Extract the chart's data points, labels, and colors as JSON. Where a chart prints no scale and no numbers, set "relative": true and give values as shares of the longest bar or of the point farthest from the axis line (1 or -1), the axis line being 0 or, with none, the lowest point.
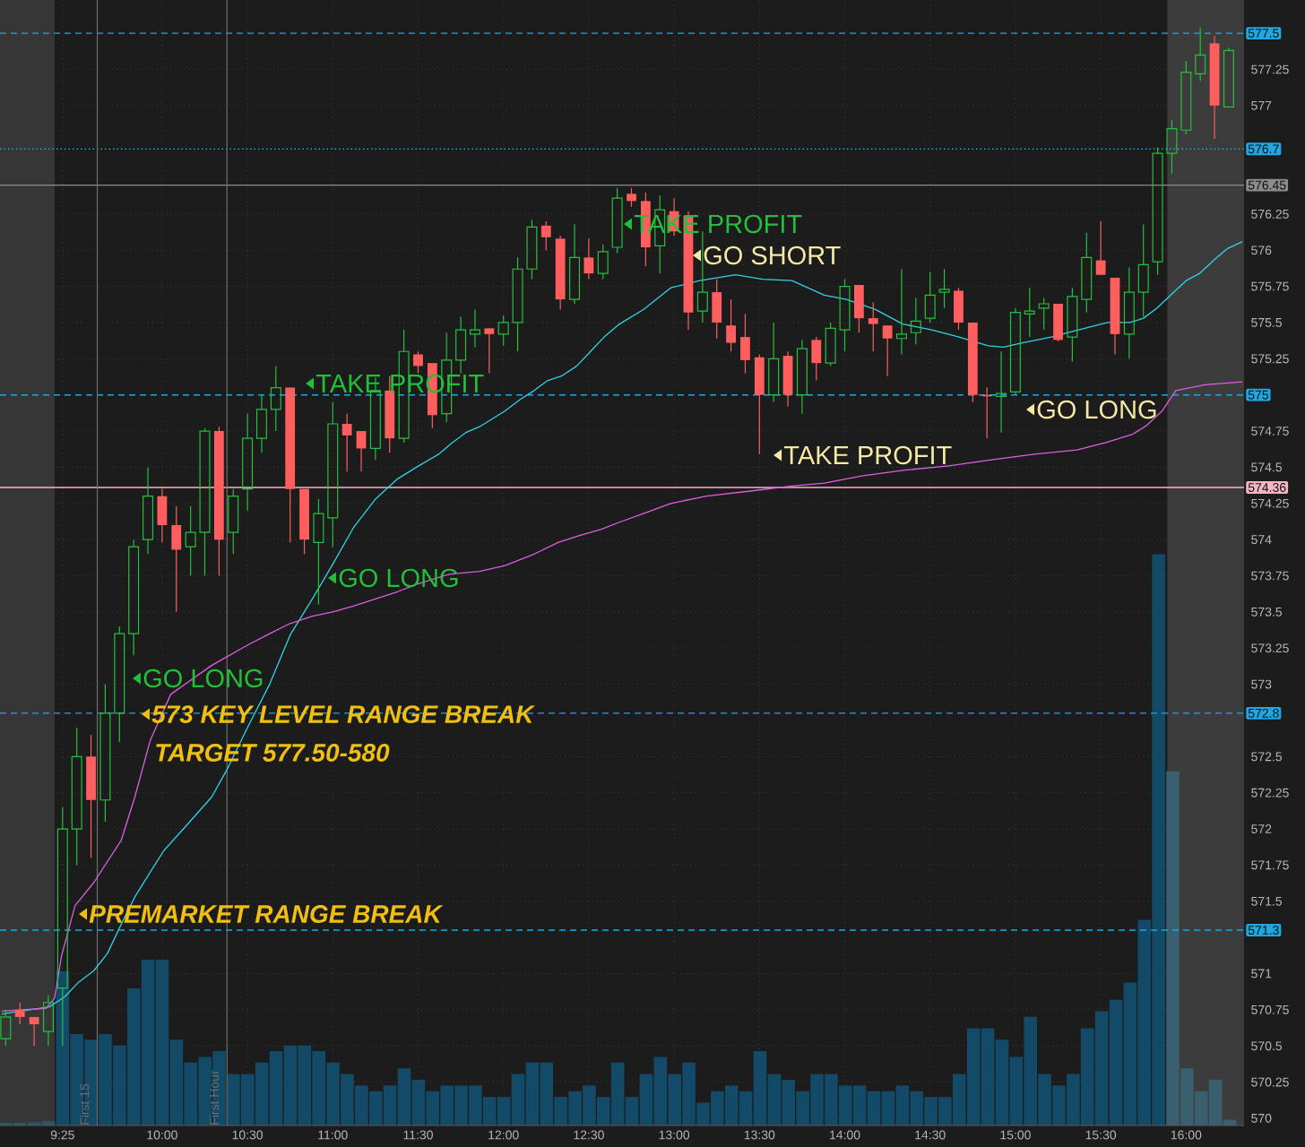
{
  "chart_data": [
    {
      "type": "candlestick",
      "x": [
        9.0833,
        9.1667,
        9.25,
        9.3333,
        9.4167,
        9.5,
        9.5833,
        9.6667,
        9.75,
        9.8333,
        9.9167,
        10,
        10.0833,
        10.1667,
        10.25,
        10.3333,
        10.4167,
        10.5,
        10.5833,
        10.6667,
        10.75,
        10.8333,
        10.9167,
        11,
        11.0833,
        11.1667,
        11.25,
        11.3333,
        11.4167,
        11.5,
        11.5833,
        11.6667,
        11.75,
        11.8333,
        11.9167,
        12,
        12.0833,
        12.1667,
        12.25,
        12.3333,
        12.4167,
        12.5,
        12.5833,
        12.6667,
        12.75,
        12.8333,
        12.9167,
        13,
        13.0833,
        13.1667,
        13.25,
        13.3333,
        13.4167,
        13.5,
        13.5833,
        13.6667,
        13.75,
        13.8333,
        13.9167,
        14,
        14.0833,
        14.1667,
        14.25,
        14.3333,
        14.4167,
        14.5,
        14.5833,
        14.6667,
        14.75,
        14.8333,
        14.9167,
        15,
        15.0833,
        15.1667,
        15.25,
        15.3333,
        15.4167,
        15.5,
        15.5833,
        15.6667,
        15.75,
        15.8333,
        15.9167,
        16,
        16.0833,
        16.1667,
        16.25
      ],
      "ohlc": [
        [
          570.55,
          570.75,
          570.5,
          570.7
        ],
        [
          570.75,
          570.8,
          570.65,
          570.7
        ],
        [
          570.7,
          570.7,
          570.5,
          570.65
        ],
        [
          570.6,
          570.85,
          570.5,
          570.8
        ],
        [
          570.9,
          572.15,
          570.5,
          572.0
        ],
        [
          572.0,
          572.7,
          571.75,
          572.5
        ],
        [
          572.5,
          572.65,
          571.8,
          572.2
        ],
        [
          572.2,
          573.0,
          572.05,
          572.8
        ],
        [
          572.8,
          573.4,
          572.6,
          573.35
        ],
        [
          573.35,
          574.0,
          573.2,
          573.95
        ],
        [
          574.0,
          574.5,
          573.9,
          574.3
        ],
        [
          574.3,
          574.35,
          573.98,
          574.1
        ],
        [
          574.1,
          574.23,
          573.5,
          573.93
        ],
        [
          573.95,
          574.23,
          573.75,
          574.05
        ],
        [
          574.05,
          574.77,
          573.75,
          574.75
        ],
        [
          574.75,
          574.78,
          573.75,
          574.0
        ],
        [
          574.05,
          574.35,
          573.9,
          574.3
        ],
        [
          574.35,
          574.87,
          574.2,
          574.7
        ],
        [
          574.7,
          575.0,
          574.6,
          574.9
        ],
        [
          574.9,
          575.2,
          574.75,
          575.05
        ],
        [
          575.05,
          575.05,
          573.98,
          574.35
        ],
        [
          574.35,
          574.35,
          573.9,
          574.0
        ],
        [
          573.98,
          574.28,
          573.55,
          574.18
        ],
        [
          574.15,
          574.95,
          573.95,
          574.8
        ],
        [
          574.8,
          574.87,
          574.47,
          574.72
        ],
        [
          574.75,
          574.75,
          574.47,
          574.63
        ],
        [
          574.63,
          575.12,
          574.55,
          575.03
        ],
        [
          575.03,
          575.13,
          574.6,
          574.7
        ],
        [
          574.7,
          575.45,
          574.67,
          575.3
        ],
        [
          575.28,
          575.3,
          575.15,
          575.2
        ],
        [
          575.22,
          575.22,
          574.77,
          574.86
        ],
        [
          574.87,
          575.43,
          574.81,
          575.24
        ],
        [
          575.24,
          575.54,
          575.15,
          575.45
        ],
        [
          575.42,
          575.59,
          575.33,
          575.45
        ],
        [
          575.46,
          575.46,
          575.15,
          575.42
        ],
        [
          575.42,
          575.55,
          575.34,
          575.5
        ],
        [
          575.5,
          575.95,
          575.3,
          575.87
        ],
        [
          575.87,
          576.21,
          575.8,
          576.16
        ],
        [
          576.17,
          576.2,
          576.0,
          576.09
        ],
        [
          576.08,
          576.1,
          575.59,
          575.66
        ],
        [
          575.66,
          576.18,
          575.63,
          575.95
        ],
        [
          575.95,
          576.08,
          575.8,
          575.84
        ],
        [
          575.84,
          576.04,
          575.8,
          575.99
        ],
        [
          576.02,
          576.43,
          575.98,
          576.36
        ],
        [
          576.39,
          576.43,
          576.3,
          576.34
        ],
        [
          576.34,
          576.4,
          575.89,
          576.02
        ],
        [
          576.03,
          576.38,
          575.84,
          576.28
        ],
        [
          576.27,
          576.36,
          576.1,
          576.13
        ],
        [
          576.24,
          576.27,
          575.45,
          575.57
        ],
        [
          575.58,
          576.13,
          575.5,
          575.71
        ],
        [
          575.71,
          575.8,
          575.39,
          575.5
        ],
        [
          575.48,
          575.66,
          575.3,
          575.36
        ],
        [
          575.4,
          575.56,
          575.15,
          575.24
        ],
        [
          575.26,
          575.28,
          574.59,
          575.0
        ],
        [
          575.0,
          575.5,
          574.95,
          575.25
        ],
        [
          575.27,
          575.3,
          574.92,
          575.0
        ],
        [
          575.0,
          575.38,
          574.87,
          575.32
        ],
        [
          575.38,
          575.4,
          575.1,
          575.22
        ],
        [
          575.22,
          575.5,
          575.2,
          575.46
        ],
        [
          575.45,
          575.8,
          575.3,
          575.75
        ],
        [
          575.76,
          575.76,
          575.43,
          575.53
        ],
        [
          575.53,
          575.64,
          575.3,
          575.49
        ],
        [
          575.48,
          575.48,
          575.13,
          575.39
        ],
        [
          575.39,
          575.87,
          575.28,
          575.42
        ],
        [
          575.43,
          575.67,
          575.35,
          575.51
        ],
        [
          575.53,
          575.85,
          575.5,
          575.69
        ],
        [
          575.71,
          575.87,
          575.6,
          575.73
        ],
        [
          575.72,
          575.74,
          575.45,
          575.5
        ],
        [
          575.5,
          575.5,
          574.95,
          575.0
        ],
        [
          575.0,
          575.05,
          574.7,
          574.99
        ],
        [
          574.99,
          575.3,
          574.74,
          575.01
        ],
        [
          575.02,
          575.6,
          575.0,
          575.57
        ],
        [
          575.56,
          575.74,
          575.4,
          575.58
        ],
        [
          575.6,
          575.67,
          575.45,
          575.63
        ],
        [
          575.63,
          575.63,
          575.37,
          575.38
        ],
        [
          575.4,
          575.74,
          575.23,
          575.68
        ],
        [
          575.66,
          576.12,
          575.57,
          575.95
        ],
        [
          575.93,
          576.2,
          575.83,
          575.83
        ],
        [
          575.81,
          575.81,
          575.28,
          575.42
        ],
        [
          575.42,
          575.88,
          575.25,
          575.71
        ],
        [
          575.71,
          576.18,
          575.54,
          575.9
        ],
        [
          575.92,
          576.71,
          575.83,
          576.67
        ],
        [
          576.67,
          576.9,
          576.53,
          576.84
        ],
        [
          576.83,
          577.31,
          576.8,
          577.23
        ],
        [
          577.22,
          577.54,
          577.17,
          577.35
        ],
        [
          577.43,
          577.48,
          576.77,
          577.0
        ],
        [
          576.99,
          577.4,
          576.99,
          577.38
        ]
      ],
      "colors": [
        "#26c03c",
        "#ff5e5e",
        "#ff5e5e",
        "#26c03c",
        "#26c03c",
        "#26c03c",
        "#ff5e5e",
        "#26c03c",
        "#26c03c",
        "#26c03c",
        "#26c03c",
        "#ff5e5e",
        "#ff5e5e",
        "#26c03c",
        "#26c03c",
        "#ff5e5e",
        "#26c03c",
        "#26c03c",
        "#26c03c",
        "#26c03c",
        "#ff5e5e",
        "#ff5e5e",
        "#26c03c",
        "#26c03c",
        "#ff5e5e",
        "#ff5e5e",
        "#26c03c",
        "#ff5e5e",
        "#26c03c",
        "#ff5e5e",
        "#ff5e5e",
        "#26c03c",
        "#26c03c",
        "#26c03c",
        "#ff5e5e",
        "#26c03c",
        "#26c03c",
        "#26c03c",
        "#ff5e5e",
        "#ff5e5e",
        "#26c03c",
        "#ff5e5e",
        "#26c03c",
        "#26c03c",
        "#ff5e5e",
        "#ff5e5e",
        "#26c03c",
        "#ff5e5e",
        "#ff5e5e",
        "#26c03c",
        "#ff5e5e",
        "#ff5e5e",
        "#ff5e5e",
        "#ff5e5e",
        "#26c03c",
        "#ff5e5e",
        "#26c03c",
        "#ff5e5e",
        "#26c03c",
        "#26c03c",
        "#ff5e5e",
        "#ff5e5e",
        "#ff5e5e",
        "#26c03c",
        "#26c03c",
        "#26c03c",
        "#26c03c",
        "#ff5e5e",
        "#ff5e5e",
        "#ff5e5e",
        "#26c03c",
        "#26c03c",
        "#26c03c",
        "#26c03c",
        "#ff5e5e",
        "#26c03c",
        "#26c03c",
        "#ff5e5e",
        "#ff5e5e",
        "#26c03c",
        "#26c03c",
        "#26c03c",
        "#26c03c",
        "#26c03c",
        "#26c03c",
        "#ff5e5e",
        "#26c03c"
      ],
      "series": [
        {
          "type": "line",
          "color": "#31d3e3",
          "x": [
            9.06,
            9.34,
            9.43,
            9.51,
            9.6,
            9.68,
            9.76,
            9.84,
            9.93,
            10.01,
            10.14,
            10.29,
            10.38,
            10.5,
            10.63,
            10.75,
            10.88,
            11.0,
            11.12,
            11.25,
            11.38,
            11.49,
            11.62,
            11.7,
            11.78,
            11.86,
            12.01,
            12.1,
            12.18,
            12.26,
            12.34,
            12.43,
            12.51,
            12.59,
            12.68,
            12.82,
            12.98,
            13.15,
            13.36,
            13.52,
            13.69,
            13.88,
            14.01,
            14.18,
            14.34,
            14.51,
            14.67,
            14.84,
            14.93,
            15.04,
            15.21,
            15.37,
            15.54,
            15.67,
            15.75,
            15.83,
            15.91,
            16.0,
            16.08,
            16.17,
            16.24,
            16.33
          ],
          "values": [
            570.72,
            570.77,
            570.84,
            570.94,
            571.02,
            571.14,
            571.34,
            571.53,
            571.7,
            571.85,
            572.02,
            572.22,
            572.41,
            572.7,
            573.0,
            573.34,
            573.59,
            573.83,
            574.08,
            574.28,
            574.42,
            574.5,
            574.59,
            574.67,
            574.74,
            574.78,
            574.89,
            574.97,
            575.03,
            575.1,
            575.13,
            575.2,
            575.3,
            575.4,
            575.49,
            575.59,
            575.74,
            575.79,
            575.83,
            575.8,
            575.79,
            575.69,
            575.66,
            575.59,
            575.49,
            575.45,
            575.4,
            575.34,
            575.33,
            575.36,
            575.4,
            575.45,
            575.5,
            575.5,
            575.53,
            575.6,
            575.69,
            575.79,
            575.84,
            575.94,
            576.01,
            576.06
          ]
        },
        {
          "type": "line",
          "color": "#dd5ee0",
          "x": [
            9.06,
            9.32,
            9.37,
            9.41,
            9.49,
            9.6,
            9.76,
            9.84,
            9.93,
            10.05,
            10.29,
            10.38,
            10.5,
            10.63,
            10.75,
            10.88,
            11.0,
            11.12,
            11.25,
            11.38,
            11.49,
            11.68,
            11.86,
            12.01,
            12.18,
            12.32,
            12.45,
            12.57,
            12.68,
            12.82,
            12.98,
            13.19,
            13.48,
            13.69,
            13.88,
            14.1,
            14.35,
            14.61,
            14.85,
            15.11,
            15.36,
            15.53,
            15.69,
            15.77,
            15.86,
            15.94,
            16.11,
            16.33
          ],
          "values": [
            570.74,
            570.76,
            570.83,
            571.12,
            571.47,
            571.63,
            571.92,
            572.22,
            572.61,
            572.93,
            573.13,
            573.19,
            573.27,
            573.35,
            573.42,
            573.47,
            573.5,
            573.54,
            573.59,
            573.64,
            573.69,
            573.76,
            573.78,
            573.82,
            573.9,
            573.98,
            574.03,
            574.07,
            574.12,
            574.18,
            574.25,
            574.3,
            574.34,
            574.37,
            574.39,
            574.44,
            574.48,
            574.51,
            574.55,
            574.59,
            574.62,
            574.67,
            574.73,
            574.79,
            574.89,
            575.03,
            575.07,
            575.09
          ]
        }
      ],
      "xlim": [
        9.05,
        16.34
      ],
      "ylim": [
        569.95,
        577.73
      ],
      "xticks": [
        {
          "value": 9.4167,
          "label": "9:25"
        },
        {
          "value": 10,
          "label": "10:00"
        },
        {
          "value": 10.5,
          "label": "10:30"
        },
        {
          "value": 11,
          "label": "11:00"
        },
        {
          "value": 11.5,
          "label": "11:30"
        },
        {
          "value": 12,
          "label": "12:00"
        },
        {
          "value": 12.5,
          "label": "12:30"
        },
        {
          "value": 13,
          "label": "13:00"
        },
        {
          "value": 13.5,
          "label": "13:30"
        },
        {
          "value": 14,
          "label": "14:00"
        },
        {
          "value": 14.5,
          "label": "14:30"
        },
        {
          "value": 15,
          "label": "15:00"
        },
        {
          "value": 15.5,
          "label": "15:30"
        },
        {
          "value": 16,
          "label": "16:00"
        }
      ],
      "yticks": [
        570,
        570.25,
        570.5,
        570.75,
        571,
        571.5,
        571.75,
        572,
        572.25,
        572.5,
        573,
        573.25,
        573.5,
        573.75,
        574,
        574.25,
        574.5,
        574.75,
        575.25,
        575.5,
        575.75,
        576,
        576.25,
        577,
        577.25
      ],
      "grid": true,
      "ref_lines": [
        {
          "axis": "y",
          "value": 577.5,
          "label": "577.5",
          "color": "#1ea7e1",
          "line_style": "dashed"
        },
        {
          "axis": "y",
          "value": 576.7,
          "label": "576.7",
          "color": "#1ea7e1",
          "line_style": "dotted"
        },
        {
          "axis": "y",
          "value": 576.45,
          "label": "576.45",
          "color": "#8c8c8c",
          "line_style": "solid"
        },
        {
          "axis": "y",
          "value": 575,
          "label": "575",
          "color": "#1ea7e1",
          "line_style": "dashed"
        },
        {
          "axis": "y",
          "value": 574.36,
          "label": "574.36",
          "color": "#f4b6c2",
          "line_style": "solid"
        },
        {
          "axis": "y",
          "value": 572.8,
          "label": "572.8",
          "color": "#1ea7e1",
          "line_style": "dashed"
        },
        {
          "axis": "y",
          "value": 571.3,
          "label": "571.3",
          "color": "#1ea7e1",
          "line_style": "dashed"
        },
        {
          "axis": "x",
          "value": 9.62,
          "label": "First 15",
          "color": "#6e6e6e",
          "line_style": "solid"
        },
        {
          "axis": "x",
          "value": 10.38,
          "label": "First Hour",
          "color": "#6e6e6e",
          "line_style": "solid"
        }
      ],
      "bands": [
        {
          "axis": "x",
          "from": 9.05,
          "to": 9.37,
          "color": "#363636"
        },
        {
          "axis": "x",
          "from": 15.89,
          "to": 16.34,
          "color": "#3c3c3c"
        }
      ],
      "annotations": [
        "PREMARKET RANGE BREAK",
        "573 KEY LEVEL RANGE BREAK",
        "TARGET 577.50-580",
        "GO LONG",
        "GO LONG",
        "TAKE PROFIT",
        "TAKE PROFIT",
        "GO SHORT",
        "TAKE PROFIT",
        "GO LONG"
      ]
    },
    {
      "type": "bar",
      "relative": true,
      "categories": [
        null,
        null,
        null,
        null,
        null,
        null,
        null,
        null,
        null,
        null,
        null,
        null,
        null,
        null,
        null,
        null,
        null,
        null,
        null,
        null,
        null,
        null,
        null,
        null,
        null,
        null,
        null,
        null,
        null,
        null,
        null,
        null,
        null,
        null,
        null,
        null,
        null,
        null,
        null,
        null,
        null,
        null,
        null,
        null,
        null,
        null,
        null,
        null,
        null,
        null,
        null,
        null,
        null,
        null,
        null,
        null,
        null,
        null,
        null,
        null,
        null,
        null,
        null,
        null,
        null,
        null,
        null,
        null,
        null,
        null,
        null,
        null,
        null,
        null,
        null,
        null,
        null,
        null,
        null,
        null,
        null,
        null,
        null,
        null,
        null,
        null,
        null
      ],
      "values": [
        0.005,
        0.005,
        0.006,
        0.008,
        0.27,
        0.16,
        0.15,
        0.16,
        0.14,
        0.24,
        0.29,
        0.29,
        0.15,
        0.11,
        0.12,
        0.13,
        0.09,
        0.09,
        0.11,
        0.13,
        0.14,
        0.14,
        0.13,
        0.11,
        0.09,
        0.07,
        0.06,
        0.07,
        0.1,
        0.08,
        0.06,
        0.07,
        0.07,
        0.07,
        0.05,
        0.05,
        0.09,
        0.11,
        0.11,
        0.05,
        0.06,
        0.07,
        0.05,
        0.11,
        0.05,
        0.09,
        0.12,
        0.09,
        0.11,
        0.04,
        0.06,
        0.07,
        0.06,
        0.13,
        0.09,
        0.08,
        0.06,
        0.09,
        0.09,
        0.07,
        0.07,
        0.06,
        0.06,
        0.07,
        0.06,
        0.05,
        0.05,
        0.09,
        0.17,
        0.17,
        0.15,
        0.12,
        0.19,
        0.09,
        0.07,
        0.09,
        0.17,
        0.2,
        0.22,
        0.25,
        0.36,
        1,
        0.62,
        0.1,
        0.06,
        0.08,
        0.01
      ],
      "colors": [
        "#2c5366",
        "#2c5366",
        "#2c5366",
        "#2c5366",
        "#124a68",
        "#124a68",
        "#124a68",
        "#124a68",
        "#124a68",
        "#124a68",
        "#124a68",
        "#124a68",
        "#124a68",
        "#124a68",
        "#124a68",
        "#124a68",
        "#124a68",
        "#124a68",
        "#124a68",
        "#124a68",
        "#124a68",
        "#124a68",
        "#124a68",
        "#124a68",
        "#124a68",
        "#124a68",
        "#124a68",
        "#124a68",
        "#124a68",
        "#124a68",
        "#124a68",
        "#124a68",
        "#124a68",
        "#124a68",
        "#124a68",
        "#124a68",
        "#124a68",
        "#124a68",
        "#124a68",
        "#124a68",
        "#124a68",
        "#124a68",
        "#124a68",
        "#124a68",
        "#124a68",
        "#124a68",
        "#124a68",
        "#124a68",
        "#124a68",
        "#124a68",
        "#124a68",
        "#124a68",
        "#124a68",
        "#124a68",
        "#124a68",
        "#124a68",
        "#124a68",
        "#124a68",
        "#124a68",
        "#124a68",
        "#124a68",
        "#124a68",
        "#124a68",
        "#124a68",
        "#124a68",
        "#124a68",
        "#124a68",
        "#124a68",
        "#124a68",
        "#124a68",
        "#124a68",
        "#124a68",
        "#124a68",
        "#124a68",
        "#124a68",
        "#124a68",
        "#124a68",
        "#124a68",
        "#124a68",
        "#124a68",
        "#124a68",
        "#124a68",
        "#3a6070",
        "#3a6070",
        "#3a6070",
        "#3a6070",
        "#3a6070"
      ]
    }
  ]
}
